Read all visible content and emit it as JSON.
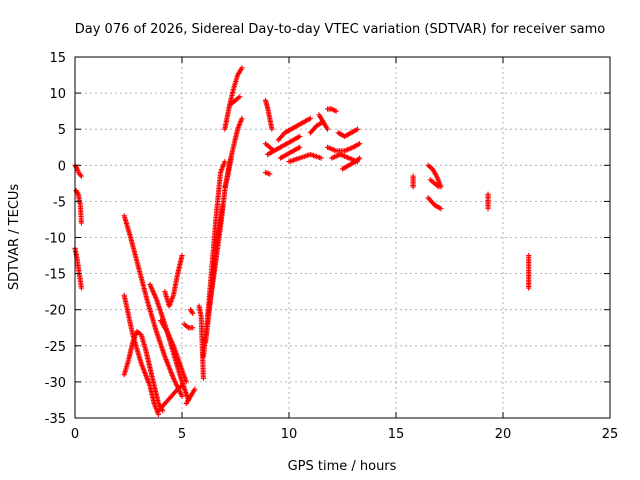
{
  "chart_data": {
    "type": "scatter",
    "title": "Day 076 of 2026, Sidereal Day-to-day VTEC variation (SDTVAR) for receiver samo",
    "xlabel": "GPS time / hours",
    "ylabel": "SDTVAR / TECUs",
    "xlim": [
      0,
      25
    ],
    "ylim": [
      -35,
      15
    ],
    "xticks": [
      0,
      5,
      10,
      15,
      20,
      25
    ],
    "yticks": [
      -35,
      -30,
      -25,
      -20,
      -15,
      -10,
      -5,
      0,
      5,
      10,
      15
    ],
    "xtick_labels": [
      "0",
      "5",
      "10",
      "15",
      "20",
      "25"
    ],
    "ytick_labels": [
      "-35",
      "-30",
      "-25",
      "-20",
      "-15",
      "-10",
      "-5",
      "0",
      "5",
      "10",
      "15"
    ],
    "grid": true,
    "marker": "+",
    "marker_color": "#ff0000",
    "series": [
      {
        "name": "SDTVAR",
        "segments": [
          {
            "x": [
              0.0,
              0.1,
              0.2,
              0.3
            ],
            "y": [
              0.0,
              -0.5,
              -1.2,
              -1.5
            ]
          },
          {
            "x": [
              0.05,
              0.15,
              0.25,
              0.3
            ],
            "y": [
              -3.5,
              -4.0,
              -5.5,
              -8.0
            ]
          },
          {
            "x": [
              0.0,
              0.1,
              0.2,
              0.3
            ],
            "y": [
              -11.5,
              -13.0,
              -15.0,
              -17.0
            ]
          },
          {
            "x": [
              2.3,
              2.7,
              3.1,
              3.5,
              3.7,
              3.9
            ],
            "y": [
              -18.0,
              -23.5,
              -27.5,
              -30.5,
              -33.0,
              -34.5
            ]
          },
          {
            "x": [
              2.3,
              2.5,
              2.7,
              2.9,
              3.1,
              3.3,
              3.5,
              3.7,
              3.9,
              4.1
            ],
            "y": [
              -29.0,
              -27.0,
              -24.5,
              -23.0,
              -23.5,
              -25.5,
              -28.0,
              -30.5,
              -33.0,
              -34.0
            ]
          },
          {
            "x": [
              2.3,
              2.6,
              3.0,
              3.4,
              3.8,
              4.2,
              4.6,
              5.0
            ],
            "y": [
              -7.0,
              -10.0,
              -14.5,
              -19.0,
              -23.0,
              -26.5,
              -29.5,
              -32.0
            ]
          },
          {
            "x": [
              3.5,
              3.8,
              4.2,
              4.6,
              5.0,
              5.3
            ],
            "y": [
              -16.5,
              -18.5,
              -22.0,
              -26.0,
              -30.0,
              -32.5
            ]
          },
          {
            "x": [
              4.0,
              4.3,
              4.6,
              4.9,
              5.2
            ],
            "y": [
              -21.5,
              -23.0,
              -25.0,
              -27.5,
              -30.0
            ]
          },
          {
            "x": [
              3.9,
              4.2,
              4.5,
              4.8,
              5.0
            ],
            "y": [
              -34.0,
              -33.0,
              -32.0,
              -31.0,
              -30.5
            ]
          },
          {
            "x": [
              4.2,
              4.4,
              4.6,
              4.8,
              5.0
            ],
            "y": [
              -17.5,
              -19.5,
              -18.0,
              -15.0,
              -12.5
            ]
          },
          {
            "x": [
              5.1,
              5.3,
              5.5
            ],
            "y": [
              -22.0,
              -22.5,
              -22.5
            ]
          },
          {
            "x": [
              5.2,
              5.4,
              5.6
            ],
            "y": [
              -33.0,
              -32.0,
              -31.0
            ]
          },
          {
            "x": [
              5.4,
              5.5
            ],
            "y": [
              -20.0,
              -20.5
            ]
          },
          {
            "x": [
              5.8,
              5.9,
              6.0
            ],
            "y": [
              -19.5,
              -21.0,
              -29.5
            ]
          },
          {
            "x": [
              6.0,
              6.2,
              6.4,
              6.6,
              6.8,
              7.0
            ],
            "y": [
              -26.5,
              -21.0,
              -14.0,
              -7.0,
              -1.0,
              0.5
            ]
          },
          {
            "x": [
              6.2,
              6.5,
              6.8,
              7.0,
              7.2,
              7.4,
              7.6,
              7.8
            ],
            "y": [
              -21.0,
              -15.0,
              -8.5,
              -3.5,
              0.0,
              2.5,
              5.0,
              6.5
            ]
          },
          {
            "x": [
              6.1,
              6.3,
              6.5,
              6.7,
              6.9
            ],
            "y": [
              -24.5,
              -19.5,
              -14.0,
              -9.5,
              -5.5
            ]
          },
          {
            "x": [
              7.0,
              7.2,
              7.4,
              7.6,
              7.8
            ],
            "y": [
              5.0,
              8.0,
              10.5,
              12.5,
              13.5
            ]
          },
          {
            "x": [
              7.0,
              7.1,
              7.2,
              7.3
            ],
            "y": [
              -3.0,
              -2.0,
              -0.5,
              1.0
            ]
          },
          {
            "x": [
              7.3,
              7.5,
              7.7
            ],
            "y": [
              8.5,
              9.0,
              9.5
            ]
          },
          {
            "x": [
              8.9,
              9.0,
              9.1,
              9.2
            ],
            "y": [
              9.0,
              8.0,
              6.5,
              5.0
            ]
          },
          {
            "x": [
              8.9,
              9.1,
              9.3
            ],
            "y": [
              3.0,
              2.5,
              2.0
            ]
          },
          {
            "x": [
              8.9,
              9.1
            ],
            "y": [
              -1.0,
              -1.2
            ]
          },
          {
            "x": [
              9.0,
              9.3,
              9.6,
              9.9,
              10.2,
              10.5
            ],
            "y": [
              1.5,
              2.0,
              2.5,
              3.0,
              3.5,
              4.0
            ]
          },
          {
            "x": [
              9.5,
              9.8,
              10.1,
              10.4,
              10.7,
              11.0
            ],
            "y": [
              3.5,
              4.5,
              5.0,
              5.5,
              6.0,
              6.5
            ]
          },
          {
            "x": [
              9.6,
              9.9,
              10.2,
              10.5
            ],
            "y": [
              1.0,
              1.5,
              2.0,
              2.5
            ]
          },
          {
            "x": [
              10.0,
              10.5,
              11.0,
              11.5
            ],
            "y": [
              0.5,
              1.0,
              1.5,
              1.0
            ]
          },
          {
            "x": [
              11.0,
              11.3,
              11.6
            ],
            "y": [
              4.5,
              5.5,
              6.0
            ]
          },
          {
            "x": [
              11.4,
              11.6,
              11.8
            ],
            "y": [
              7.0,
              6.0,
              5.0
            ]
          },
          {
            "x": [
              11.8,
              12.0,
              12.2
            ],
            "y": [
              7.8,
              7.8,
              7.5
            ]
          },
          {
            "x": [
              11.8,
              12.2,
              12.6,
              13.0,
              13.3
            ],
            "y": [
              2.5,
              2.0,
              2.0,
              2.5,
              3.0
            ]
          },
          {
            "x": [
              12.0,
              12.4,
              12.8,
              13.2
            ],
            "y": [
              1.0,
              1.5,
              1.0,
              0.5
            ]
          },
          {
            "x": [
              12.3,
              12.6,
              12.9,
              13.2
            ],
            "y": [
              4.5,
              4.0,
              4.5,
              5.0
            ]
          },
          {
            "x": [
              12.5,
              12.8,
              13.1,
              13.3
            ],
            "y": [
              -0.5,
              0.0,
              0.5,
              1.0
            ]
          },
          {
            "x": [
              15.8,
              15.8
            ],
            "y": [
              -1.5,
              -3.0
            ]
          },
          {
            "x": [
              16.5,
              16.7,
              16.9,
              17.1
            ],
            "y": [
              0.0,
              -0.5,
              -1.5,
              -3.0
            ]
          },
          {
            "x": [
              16.6,
              16.8,
              17.0
            ],
            "y": [
              -2.0,
              -2.5,
              -3.0
            ]
          },
          {
            "x": [
              16.5,
              16.8,
              17.1
            ],
            "y": [
              -4.5,
              -5.5,
              -6.0
            ]
          },
          {
            "x": [
              19.3,
              19.3
            ],
            "y": [
              -4.0,
              -6.0
            ]
          },
          {
            "x": [
              21.2,
              21.2,
              21.2,
              21.2
            ],
            "y": [
              -12.5,
              -13.0,
              -15.5,
              -17.0
            ]
          }
        ]
      }
    ]
  }
}
